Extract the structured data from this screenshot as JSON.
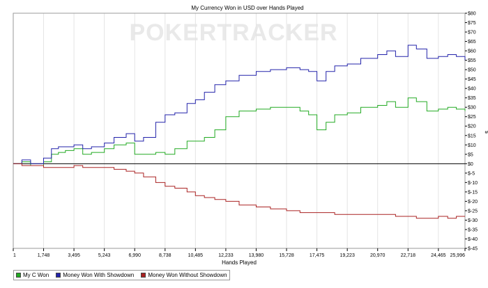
{
  "chart_data": {
    "type": "line",
    "title": "My Currency Won in USD over Hands Played",
    "xlabel": "Hands Played",
    "ylabel": "$",
    "watermark": "POKERTRACKER",
    "xlim": [
      1,
      25996
    ],
    "ylim": [
      -45,
      80
    ],
    "x_ticks": [
      1,
      1748,
      3495,
      5243,
      6990,
      8738,
      10485,
      12233,
      13980,
      15728,
      17475,
      19223,
      20970,
      22718,
      24465,
      25996
    ],
    "x_tick_labels": [
      "1",
      "1,748",
      "3,495",
      "5,243",
      "6,990",
      "8,738",
      "10,485",
      "12,233",
      "13,980",
      "15,728",
      "17,475",
      "19,223",
      "20,970",
      "22,718",
      "24,465",
      "25,996"
    ],
    "y_ticks": [
      80,
      75,
      70,
      65,
      60,
      55,
      50,
      45,
      40,
      35,
      30,
      25,
      20,
      15,
      10,
      5,
      0,
      -5,
      -10,
      -15,
      -20,
      -25,
      -30,
      -35,
      -40,
      -45
    ],
    "y_tick_labels": [
      "$80",
      "$75",
      "$70",
      "$65",
      "$60",
      "$55",
      "$50",
      "$45",
      "$40",
      "$35",
      "$30",
      "$25",
      "$20",
      "$15",
      "$10",
      "$5",
      "$0",
      "$-5",
      "$-10",
      "$-15",
      "$-20",
      "$-25",
      "$-30",
      "$-35",
      "$-40",
      "$-45"
    ],
    "y_axis_side": "right",
    "grid": "vertical",
    "legend_position": "bottom-left",
    "series": [
      {
        "name": "My C Won",
        "color": "#22aa22",
        "x": [
          1,
          500,
          1000,
          1748,
          2200,
          2600,
          3000,
          3495,
          4000,
          4500,
          5243,
          5800,
          6500,
          6990,
          7500,
          8200,
          8738,
          9300,
          10000,
          10485,
          11000,
          11600,
          12233,
          13000,
          13980,
          14800,
          15728,
          16500,
          17000,
          17475,
          18000,
          18500,
          19223,
          20000,
          20970,
          21500,
          22000,
          22718,
          23200,
          23800,
          24465,
          25000,
          25500,
          25996
        ],
        "y": [
          0,
          1,
          -1,
          1,
          5,
          6,
          7,
          8,
          5,
          6,
          8,
          10,
          11,
          5,
          5,
          6,
          5,
          8,
          12,
          12,
          14,
          18,
          25,
          28,
          29,
          30,
          30,
          28,
          26,
          18,
          22,
          26,
          27,
          30,
          31,
          33,
          30,
          35,
          33,
          28,
          29,
          30,
          29,
          28
        ]
      },
      {
        "name": "Money Won With Showdown",
        "color": "#2222aa",
        "x": [
          1,
          500,
          1000,
          1748,
          2200,
          2600,
          3000,
          3495,
          4000,
          4500,
          5243,
          5800,
          6500,
          6990,
          7500,
          8200,
          8738,
          9300,
          10000,
          10485,
          11000,
          11600,
          12233,
          13000,
          13980,
          14800,
          15728,
          16500,
          17000,
          17475,
          18000,
          18500,
          19223,
          20000,
          20970,
          21500,
          22000,
          22718,
          23200,
          23800,
          24465,
          25000,
          25500,
          25996
        ],
        "y": [
          0,
          2,
          0,
          3,
          8,
          9,
          9,
          10,
          8,
          9,
          11,
          14,
          16,
          12,
          14,
          22,
          26,
          27,
          32,
          34,
          38,
          42,
          44,
          47,
          49,
          50,
          51,
          50,
          49,
          44,
          49,
          52,
          53,
          56,
          58,
          60,
          57,
          63,
          61,
          56,
          57,
          58,
          57,
          55
        ]
      },
      {
        "name": "Money Won Without Showdown",
        "color": "#aa2222",
        "x": [
          1,
          500,
          1000,
          1748,
          2200,
          2600,
          3000,
          3495,
          4000,
          4500,
          5243,
          5800,
          6500,
          6990,
          7500,
          8200,
          8738,
          9300,
          10000,
          10485,
          11000,
          11600,
          12233,
          13000,
          13980,
          14800,
          15728,
          16500,
          17000,
          17475,
          18000,
          18500,
          19223,
          20000,
          20970,
          21500,
          22000,
          22718,
          23200,
          23800,
          24465,
          25000,
          25500,
          25996
        ],
        "y": [
          0,
          -1,
          -1,
          -2,
          -2,
          -2,
          -2,
          -1,
          -2,
          -2,
          -2,
          -3,
          -4,
          -5,
          -7,
          -10,
          -12,
          -13,
          -15,
          -17,
          -18,
          -19,
          -20,
          -22,
          -23,
          -24,
          -25,
          -26,
          -26,
          -26,
          -26,
          -27,
          -27,
          -27,
          -27,
          -27,
          -28,
          -28,
          -29,
          -29,
          -28,
          -29,
          -28,
          -28
        ]
      }
    ]
  }
}
